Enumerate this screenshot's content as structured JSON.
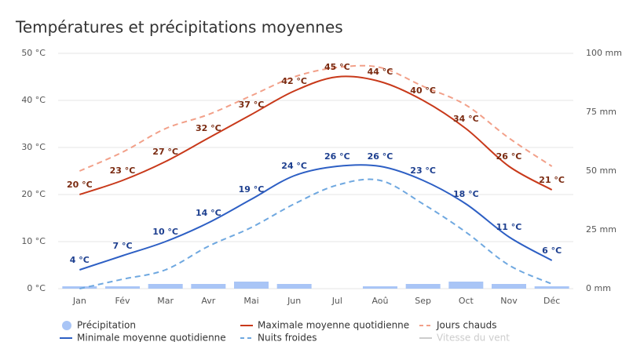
{
  "chart_data": {
    "type": "line",
    "title": "Températures et précipitations moyennes",
    "categories": [
      "Jan",
      "Fév",
      "Mar",
      "Avr",
      "Mai",
      "Jun",
      "Jul",
      "Aoû",
      "Sep",
      "Oct",
      "Nov",
      "Déc"
    ],
    "ylim": [
      0,
      50
    ],
    "yticks": [
      {
        "value": 0,
        "label": "0 °C"
      },
      {
        "value": 10,
        "label": "10 °C"
      },
      {
        "value": 20,
        "label": "20 °C"
      },
      {
        "value": 30,
        "label": "30 °C"
      },
      {
        "value": 40,
        "label": "40 °C"
      },
      {
        "value": 50,
        "label": "50 °C"
      }
    ],
    "y2lim": [
      0,
      100
    ],
    "y2ticks": [
      {
        "value": 0,
        "label": "0 mm"
      },
      {
        "value": 25,
        "label": "25 mm"
      },
      {
        "value": 50,
        "label": "50 mm"
      },
      {
        "value": 75,
        "label": "75 mm"
      },
      {
        "value": 100,
        "label": "100 mm"
      }
    ],
    "grid": true,
    "legend": "bottom",
    "series": [
      {
        "name": "Précipitation",
        "type": "bar",
        "axis": "y2",
        "color": "#a9c5f6",
        "values": [
          1,
          1,
          2,
          2,
          3,
          2,
          0,
          1,
          2,
          3,
          2,
          1
        ]
      },
      {
        "name": "Maximale moyenne quotidienne",
        "color": "#c8391a",
        "label_color": "#7a2a10",
        "values": [
          20,
          23,
          27,
          32,
          37,
          42,
          45,
          44,
          40,
          34,
          26,
          21
        ],
        "value_labels": [
          "20 °C",
          "23 °C",
          "27 °C",
          "32 °C",
          "37 °C",
          "42 °C",
          "45 °C",
          "44 °C",
          "40 °C",
          "34 °C",
          "26 °C",
          "21 °C"
        ]
      },
      {
        "name": "Jours chauds",
        "color": "#f2a089",
        "dashed": true,
        "values": [
          25,
          29,
          34,
          37,
          41,
          45,
          47,
          47,
          43,
          39,
          32,
          26
        ]
      },
      {
        "name": "Minimale moyenne quotidienne",
        "color": "#2d5fc4",
        "label_color": "#1d3f8f",
        "values": [
          4,
          7,
          10,
          14,
          19,
          24,
          26,
          26,
          23,
          18,
          11,
          6
        ],
        "value_labels": [
          "4 °C",
          "7 °C",
          "10 °C",
          "14 °C",
          "19 °C",
          "24 °C",
          "26 °C",
          "26 °C",
          "23 °C",
          "18 °C",
          "11 °C",
          "6 °C"
        ]
      },
      {
        "name": "Nuits froides",
        "color": "#6fa8e0",
        "dashed": true,
        "values": [
          0,
          2,
          4,
          9,
          13,
          18,
          22,
          23,
          18,
          12,
          5,
          1
        ]
      },
      {
        "name": "Vitesse du vent",
        "color": "#cccccc",
        "hidden": true,
        "values": [
          null,
          null,
          null,
          null,
          null,
          null,
          null,
          null,
          null,
          null,
          null,
          null
        ]
      }
    ]
  }
}
